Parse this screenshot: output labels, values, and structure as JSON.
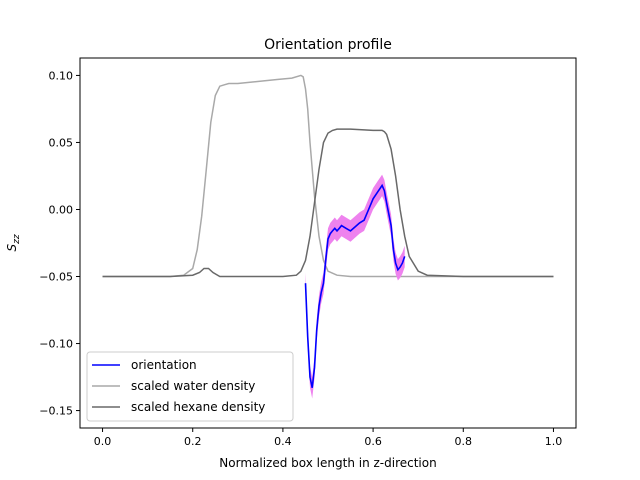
{
  "chart_data": {
    "type": "line",
    "title": "Orientation profile",
    "xlabel": "Normalized box length in z-direction",
    "ylabel_main": "S",
    "ylabel_sub": "zz",
    "xlim": [
      -0.05,
      1.05
    ],
    "ylim": [
      -0.163,
      0.113
    ],
    "x_ticks": [
      0.0,
      0.2,
      0.4,
      0.6,
      0.8,
      1.0
    ],
    "x_tick_labels": [
      "0.0",
      "0.2",
      "0.4",
      "0.6",
      "0.8",
      "1.0"
    ],
    "y_ticks": [
      -0.15,
      -0.1,
      -0.05,
      0.0,
      0.05,
      0.1
    ],
    "y_tick_labels": [
      "−0.15",
      "−0.10",
      "−0.05",
      "0.00",
      "0.05",
      "0.10"
    ],
    "grid": false,
    "legend_position": "lower-left",
    "colors": {
      "orientation": "#0000ff",
      "orientation_error": "#ee82ee",
      "water": "#a9a9a9",
      "hexane": "#696969"
    },
    "series": [
      {
        "name": "orientation",
        "x": [
          0.45,
          0.455,
          0.46,
          0.465,
          0.47,
          0.475,
          0.48,
          0.485,
          0.49,
          0.495,
          0.5,
          0.505,
          0.51,
          0.515,
          0.52,
          0.525,
          0.53,
          0.54,
          0.55,
          0.56,
          0.57,
          0.58,
          0.59,
          0.6,
          0.61,
          0.62,
          0.625,
          0.63,
          0.64,
          0.645,
          0.65,
          0.655,
          0.66,
          0.665,
          0.67
        ],
        "y": [
          -0.055,
          -0.095,
          -0.125,
          -0.133,
          -0.118,
          -0.09,
          -0.072,
          -0.062,
          -0.055,
          -0.038,
          -0.022,
          -0.018,
          -0.016,
          -0.014,
          -0.016,
          -0.014,
          -0.012,
          -0.014,
          -0.016,
          -0.013,
          -0.01,
          -0.008,
          0.0,
          0.008,
          0.013,
          0.018,
          0.014,
          0.005,
          -0.012,
          -0.03,
          -0.04,
          -0.045,
          -0.043,
          -0.04,
          -0.035
        ]
      },
      {
        "name": "scaled water density",
        "x": [
          0.0,
          0.15,
          0.18,
          0.2,
          0.21,
          0.22,
          0.23,
          0.24,
          0.25,
          0.26,
          0.27,
          0.28,
          0.3,
          0.33,
          0.36,
          0.39,
          0.42,
          0.44,
          0.445,
          0.45,
          0.455,
          0.46,
          0.47,
          0.48,
          0.49,
          0.5,
          0.52,
          0.55,
          0.7,
          0.85,
          1.0
        ],
        "y": [
          -0.05,
          -0.05,
          -0.049,
          -0.044,
          -0.03,
          -0.005,
          0.03,
          0.065,
          0.085,
          0.092,
          0.093,
          0.094,
          0.094,
          0.095,
          0.096,
          0.097,
          0.098,
          0.1,
          0.099,
          0.09,
          0.075,
          0.05,
          0.01,
          -0.02,
          -0.038,
          -0.046,
          -0.049,
          -0.05,
          -0.05,
          -0.05,
          -0.05
        ]
      },
      {
        "name": "scaled hexane density",
        "x": [
          0.0,
          0.15,
          0.2,
          0.215,
          0.225,
          0.235,
          0.245,
          0.26,
          0.3,
          0.4,
          0.43,
          0.44,
          0.45,
          0.46,
          0.47,
          0.48,
          0.49,
          0.5,
          0.51,
          0.52,
          0.53,
          0.55,
          0.6,
          0.62,
          0.625,
          0.63,
          0.64,
          0.65,
          0.66,
          0.67,
          0.68,
          0.7,
          0.72,
          0.8,
          1.0
        ],
        "y": [
          -0.05,
          -0.05,
          -0.049,
          -0.047,
          -0.044,
          -0.044,
          -0.047,
          -0.05,
          -0.05,
          -0.05,
          -0.049,
          -0.046,
          -0.038,
          -0.02,
          0.005,
          0.03,
          0.05,
          0.057,
          0.059,
          0.06,
          0.06,
          0.06,
          0.059,
          0.059,
          0.058,
          0.056,
          0.045,
          0.025,
          0.0,
          -0.02,
          -0.035,
          -0.046,
          -0.049,
          -0.05,
          -0.05
        ]
      }
    ],
    "error_band": {
      "series": "orientation",
      "half_width": 0.008
    }
  }
}
